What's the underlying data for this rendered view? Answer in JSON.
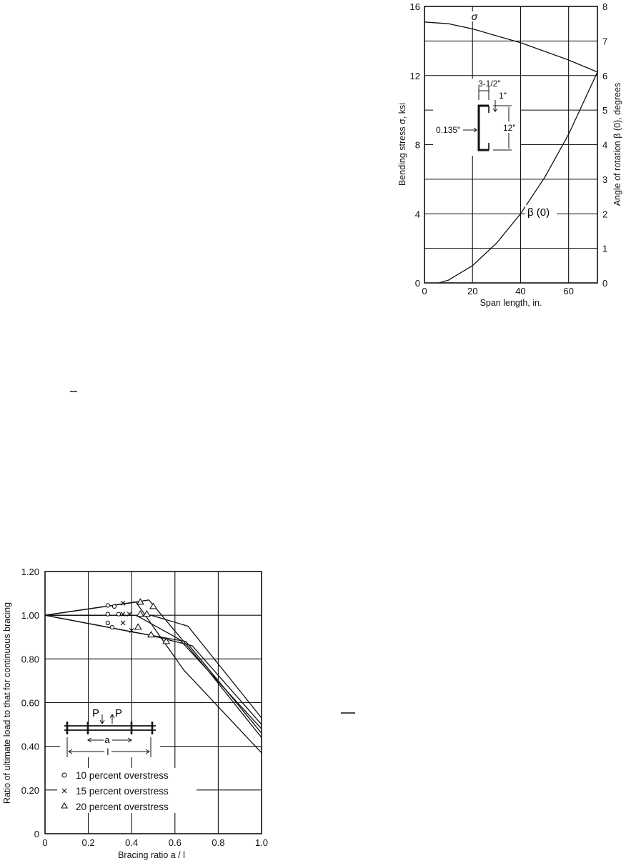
{
  "chart_data": [
    {
      "type": "line",
      "xlabel": "Span length, in.",
      "ylabel": "Bending stress σ, ksi",
      "y2label": "Angle of rotation β (0), degrees",
      "xlim": [
        0,
        72
      ],
      "ylim": [
        0,
        16
      ],
      "y2lim": [
        0,
        8
      ],
      "xticks": [
        "0",
        "20",
        "40",
        "60"
      ],
      "yticks": [
        "0",
        "4",
        "8",
        "12",
        "16"
      ],
      "y2ticks": [
        "0",
        "1",
        "2",
        "3",
        "4",
        "5",
        "6",
        "7",
        "8"
      ],
      "grid": true,
      "series": [
        {
          "name": "σ",
          "axis": "left",
          "x": [
            0,
            10,
            20,
            30,
            40,
            50,
            60,
            72
          ],
          "y": [
            15.1,
            15.0,
            14.7,
            14.3,
            13.9,
            13.4,
            12.9,
            12.2
          ]
        },
        {
          "name": "β (0)",
          "axis": "right",
          "x": [
            6,
            10,
            20,
            30,
            40,
            50,
            60,
            72
          ],
          "y": [
            0,
            0.08,
            0.5,
            1.15,
            2.0,
            3.05,
            4.3,
            6.1
          ]
        }
      ],
      "annotations": [
        "3-1/2\"",
        "1\"",
        "0.135\"",
        "12\""
      ]
    },
    {
      "type": "line",
      "xlabel": "Bracing ratio a / l",
      "ylabel": "Ratio of ultimate load to that for continuous bracing",
      "xlim": [
        0,
        1.0
      ],
      "ylim": [
        0,
        1.2
      ],
      "xticks": [
        "0",
        "0.2",
        "0.4",
        "0.6",
        "0.8",
        "1.0"
      ],
      "yticks": [
        "0",
        "0.20",
        "0.40",
        "0.60",
        "0.80",
        "1.00",
        "1.20"
      ],
      "grid": true,
      "series": [
        {
          "x": [
            0,
            0.48,
            0.75,
            1.0
          ],
          "y": [
            1.0,
            1.07,
            0.75,
            0.44
          ]
        },
        {
          "x": [
            0,
            0.42,
            0.64,
            1.0
          ],
          "y": [
            1.0,
            1.06,
            0.75,
            0.37
          ]
        },
        {
          "x": [
            0,
            0.49,
            0.66,
            1.0
          ],
          "y": [
            1.0,
            1.0,
            0.95,
            0.53
          ]
        },
        {
          "x": [
            0,
            0.42,
            0.62,
            1.0
          ],
          "y": [
            1.0,
            1.0,
            0.89,
            0.48
          ]
        },
        {
          "x": [
            0,
            0.48,
            0.68,
            1.0
          ],
          "y": [
            1.0,
            0.91,
            0.86,
            0.5
          ]
        },
        {
          "x": [
            0,
            0.42,
            0.65,
            1.0
          ],
          "y": [
            1.0,
            0.92,
            0.88,
            0.46
          ]
        }
      ],
      "markers": [
        {
          "legend": "10 percent overstress",
          "symbol": "circle",
          "points": [
            [
              0.29,
              1.045
            ],
            [
              0.32,
              1.04
            ],
            [
              0.29,
              1.005
            ],
            [
              0.34,
              1.005
            ],
            [
              0.29,
              0.965
            ],
            [
              0.31,
              0.945
            ]
          ]
        },
        {
          "legend": "15 percent overstress",
          "symbol": "x",
          "points": [
            [
              0.36,
              1.055
            ],
            [
              0.36,
              1.005
            ],
            [
              0.39,
              1.005
            ],
            [
              0.36,
              0.965
            ],
            [
              0.4,
              0.93
            ]
          ]
        },
        {
          "legend": "20 percent overstress",
          "symbol": "triangle",
          "points": [
            [
              0.44,
              1.06
            ],
            [
              0.5,
              1.04
            ],
            [
              0.44,
              1.005
            ],
            [
              0.47,
              1.005
            ],
            [
              0.43,
              0.945
            ],
            [
              0.49,
              0.91
            ],
            [
              0.56,
              0.88
            ]
          ]
        }
      ],
      "inset_labels": [
        "P",
        "P",
        "a",
        "l"
      ]
    }
  ]
}
